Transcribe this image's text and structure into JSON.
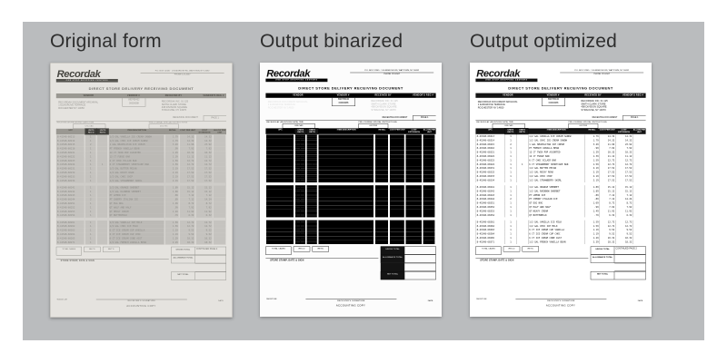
{
  "canvas": {
    "panel_bg": "#babcbe",
    "outer_bg": "#ffffff",
    "title_color": "#2e2e2e"
  },
  "panels": [
    {
      "label": "Original form",
      "variant": "original"
    },
    {
      "label": "Output binarized",
      "variant": "binarized"
    },
    {
      "label": "Output optimized",
      "variant": "optimized"
    }
  ],
  "form": {
    "brand": "Recordak",
    "brand_tagline": "ONE STOP SHOPPING CENTERS",
    "address_line1": "P.O. BOX 12345  · 1 ELMGROVE RD, WATTOWN, NY 14692",
    "address_line2": "PHONE 123-4567",
    "title": "DIRECT STORE DELIVERY RECEIVING DOCUMENT",
    "header_cols": [
      "VENDOR",
      "VENDOR #",
      "RECEIVED BY",
      "VENDOR'S REG #"
    ],
    "vendor_block": [
      "RECORDAK DOCUMENT ARCHIVAL",
      "1 ELMGROVE TERRACE",
      "ROCHESTER NY   14650"
    ],
    "vendor_no1": "890765432",
    "vendor_no2": "00000088",
    "receiver_block": [
      "RECORDAK INC.      01  125",
      "SMITH CLARK STORE",
      "498 DIVISION SQUARE",
      "SYRACUSE, NY 13070"
    ],
    "receiving_doc_label": "RECEIVING DOCUMENT",
    "page_label": "PAGE  1",
    "sub_label_1": "RECEIVED AT (RECEIVING DATE) TIME",
    "sub_label_2": "PRE-JOURNAL SPECIAL INSTRUCTIONS",
    "sub_value_1": "UNLOAD",
    "sub_value_2": "06/17/85",
    "table_cols": [
      "UPC",
      "UNITS REC'D",
      "UNITS RET'D",
      "ITEM DESCRIPTION",
      "RETAIL",
      "COST PER UNIT",
      "COST EXTENSION",
      "ALLOW PER UNIT"
    ],
    "rows": [
      {
        "upc": "8-41548-60213",
        "recd": "1",
        "retd": "",
        "desc": "1/2 GAL VANILLA ICE CREAM SANDW",
        "retail": "1.79",
        "cost": "14.32",
        "ext": "14.32",
        "allow": ""
      },
      {
        "upc": "8-41548-60214",
        "recd": "1",
        "retd": "",
        "desc": "1/2 GAL CHOC ICE CREAM SANDW",
        "retail": "1.79",
        "cost": "14.32",
        "ext": "14.32",
        "allow": ""
      },
      {
        "upc": "8-41548-60215",
        "recd": "2",
        "retd": "",
        "desc": "1 GAL NEAPOLITAN ICE CREAM",
        "retail": "3.49",
        "cost": "11.96",
        "ext": "23.92",
        "allow": ""
      },
      {
        "upc": "8-41548-60216",
        "recd": "1",
        "retd": "",
        "desc": "PT FRENCH VANILLA BEAN",
        "retail": ".99",
        "cost": "7.92",
        "ext": "7.92",
        "allow": ""
      },
      {
        "upc": "8-41548-60221",
        "recd": "1",
        "retd": "",
        "desc": "12 CT TWIN POP ASSORTED",
        "retail": "1.29",
        "cost": "10.32",
        "ext": "10.32",
        "allow": ""
      },
      {
        "upc": "8-41548-60222",
        "recd": "1",
        "retd": "",
        "desc": "12 CT FUDGE BAR",
        "retail": "1.39",
        "cost": "11.12",
        "ext": "11.12",
        "allow": ""
      },
      {
        "upc": "8-41548-60223",
        "recd": "1",
        "retd": "",
        "desc": "6 CT CHOC ECLAIR BAR",
        "retail": "1.59",
        "cost": "12.72",
        "ext": "12.72",
        "allow": ""
      },
      {
        "upc": "8-41548-60224",
        "recd": "1",
        "retd": "1",
        "desc": "6 CT STRAWBERRY SHORTCAKE BAR",
        "retail": "1.59",
        "cost": "12.72",
        "ext": "12.72",
        "allow": ""
      },
      {
        "upc": "8-41548-60231",
        "recd": "1",
        "retd": "",
        "desc": "1/2 GAL BUTTER PECAN",
        "retail": "2.19",
        "cost": "17.52",
        "ext": "17.52",
        "allow": ""
      },
      {
        "upc": "8-41548-60232",
        "recd": "1",
        "retd": "",
        "desc": "1/2 GAL ROCKY ROAD",
        "retail": "2.19",
        "cost": "17.52",
        "ext": "17.52",
        "allow": ""
      },
      {
        "upc": "8-41548-60233",
        "recd": "1",
        "retd": "",
        "desc": "1/2 GAL CHOC CHIP",
        "retail": "2.19",
        "cost": "17.52",
        "ext": "17.52",
        "allow": ""
      },
      {
        "upc": "8-41548-60234",
        "recd": "1",
        "retd": "",
        "desc": "1/2 GAL STRAWBERRY SWIRL",
        "retail": "2.19",
        "cost": "17.52",
        "ext": "17.52",
        "allow": ""
      },
      {
        "gap": true
      },
      {
        "upc": "8-41548-60241",
        "recd": "1",
        "retd": "",
        "desc": "1/2 GAL ORANGE SHERBET",
        "retail": "1.89",
        "cost": "15.12",
        "ext": "15.12",
        "allow": ""
      },
      {
        "upc": "8-41548-60242",
        "recd": "1",
        "retd": "",
        "desc": "1/2 GAL RAINBOW SHERBET",
        "retail": "1.89",
        "cost": "15.12",
        "ext": "15.12",
        "allow": ""
      },
      {
        "upc": "8-41548-60243",
        "recd": "1",
        "retd": "",
        "desc": "PT LEMON ICE",
        "retail": ".89",
        "cost": "7.12",
        "ext": "7.12",
        "allow": ""
      },
      {
        "upc": "8-41548-60244",
        "recd": "2",
        "retd": "",
        "desc": "PT CHERRY ITALIAN ICE",
        "retail": ".89",
        "cost": "7.12",
        "ext": "14.24",
        "allow": ""
      },
      {
        "upc": "8-41548-60251",
        "recd": "1",
        "retd": "",
        "desc": "QT EGG NOG",
        "retail": "1.09",
        "cost": "8.72",
        "ext": "8.72",
        "allow": ""
      },
      {
        "upc": "8-41548-60252",
        "recd": "1",
        "retd": "",
        "desc": "QT HALF AND HALF",
        "retail": ".99",
        "cost": "7.92",
        "ext": "7.92",
        "allow": ""
      },
      {
        "upc": "8-41548-60253",
        "recd": "1",
        "retd": "",
        "desc": "QT HEAVY CREAM",
        "retail": "1.49",
        "cost": "11.92",
        "ext": "11.92",
        "allow": ""
      },
      {
        "upc": "8-41548-60254",
        "recd": "1",
        "retd": "",
        "desc": "QT BUTTERMILK",
        "retail": ".79",
        "cost": "6.32",
        "ext": "6.32",
        "allow": ""
      },
      {
        "gap": true
      },
      {
        "upc": "8-41548-60261",
        "recd": "1",
        "retd": "",
        "desc": "1/2 GAL VANILLA ICE MILK",
        "retail": "1.59",
        "cost": "12.72",
        "ext": "12.72",
        "allow": ""
      },
      {
        "upc": "8-41548-60262",
        "recd": "1",
        "retd": "",
        "desc": "1/2 GAL CHOC ICE MILK",
        "retail": "1.59",
        "cost": "12.72",
        "ext": "12.72",
        "allow": ""
      },
      {
        "upc": "8-41548-60263",
        "recd": "1",
        "retd": "",
        "desc": "6 CT ICE CREAM CUP VANILLA",
        "retail": "1.19",
        "cost": "9.52",
        "ext": "9.52",
        "allow": ""
      },
      {
        "upc": "8-41548-60264",
        "recd": "1",
        "retd": "",
        "desc": "6 CT ICE CREAM CUP CHOC",
        "retail": "1.19",
        "cost": "9.52",
        "ext": "9.52",
        "allow": ""
      },
      {
        "upc": "8-41548-60265",
        "recd": "1",
        "retd": "",
        "desc": "6 CT ICE CREAM CONE ASST",
        "retail": "1.29",
        "cost": "10.32",
        "ext": "10.32",
        "allow": ""
      },
      {
        "upc": "8-41548-60271",
        "recd": "1",
        "retd": "",
        "desc": "1/2 GAL FRENCH VANILLA BEAN",
        "retail": "2.29",
        "cost": "18.32",
        "ext": "18.32",
        "allow": ""
      }
    ],
    "totals": {
      "total_cases": "TOTAL CASES",
      "recd": "REC'D",
      "retd": "RET'D",
      "stamp": "STORE STAMP, DATE & SIGN",
      "gross": "GROSS TOTAL",
      "continued": "CONTINUED PAGE  2",
      "allowance": "ALLOWANCE TOTAL",
      "net": "NET TOTAL"
    },
    "form_no": "9001127-1M",
    "signature_label": "RECEIVER'S SIGNATURE",
    "date_label": "DATE",
    "copy_label": "ACCOUNTING COPY"
  }
}
